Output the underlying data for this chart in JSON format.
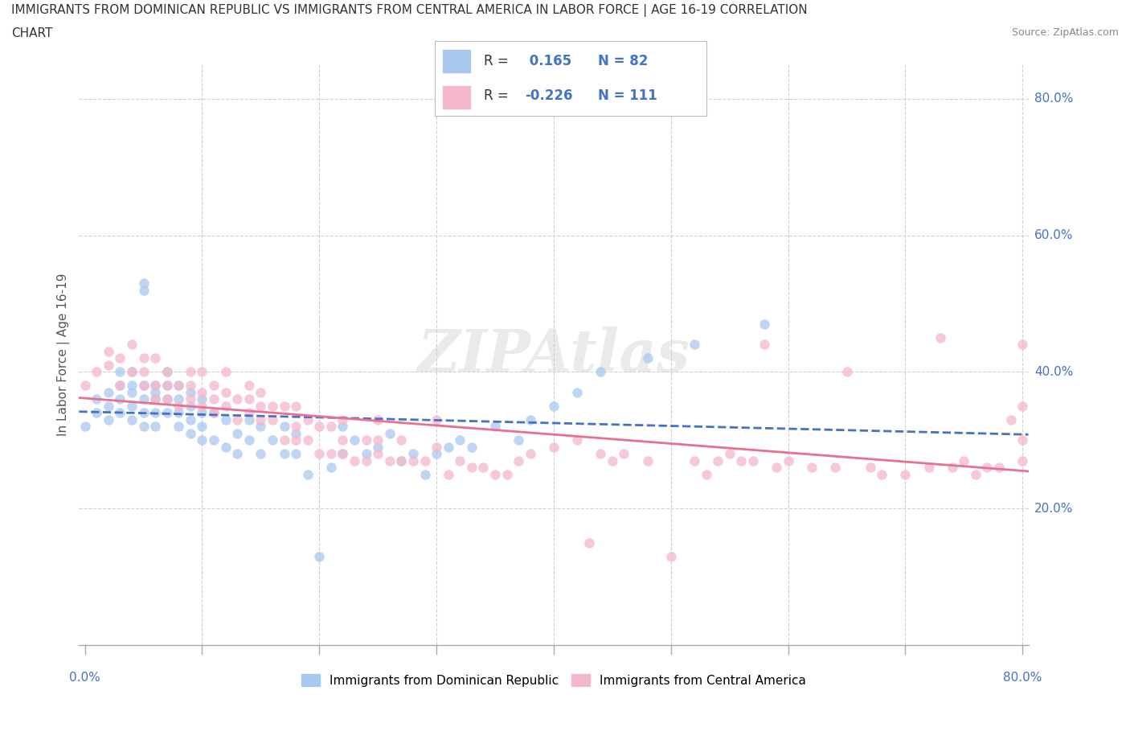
{
  "title_line1": "IMMIGRANTS FROM DOMINICAN REPUBLIC VS IMMIGRANTS FROM CENTRAL AMERICA IN LABOR FORCE | AGE 16-19 CORRELATION",
  "title_line2": "CHART",
  "source_text": "Source: ZipAtlas.com",
  "ylabel": "In Labor Force | Age 16-19",
  "watermark": "ZIPAtlas",
  "series": [
    {
      "name": "Immigrants from Dominican Republic",
      "color": "#a8c8f0",
      "line_color": "#4472c4",
      "line_style": "--",
      "R": 0.165,
      "N": 82,
      "x": [
        0.0,
        0.01,
        0.01,
        0.02,
        0.02,
        0.02,
        0.03,
        0.03,
        0.03,
        0.03,
        0.04,
        0.04,
        0.04,
        0.04,
        0.04,
        0.05,
        0.05,
        0.05,
        0.05,
        0.05,
        0.05,
        0.06,
        0.06,
        0.06,
        0.06,
        0.06,
        0.07,
        0.07,
        0.07,
        0.07,
        0.08,
        0.08,
        0.08,
        0.08,
        0.09,
        0.09,
        0.09,
        0.09,
        0.1,
        0.1,
        0.1,
        0.1,
        0.11,
        0.11,
        0.12,
        0.12,
        0.13,
        0.13,
        0.14,
        0.14,
        0.15,
        0.15,
        0.16,
        0.17,
        0.17,
        0.18,
        0.18,
        0.19,
        0.2,
        0.21,
        0.22,
        0.22,
        0.23,
        0.24,
        0.25,
        0.26,
        0.27,
        0.28,
        0.29,
        0.3,
        0.31,
        0.32,
        0.33,
        0.35,
        0.37,
        0.38,
        0.4,
        0.42,
        0.44,
        0.48,
        0.52,
        0.58
      ],
      "y": [
        0.32,
        0.34,
        0.36,
        0.33,
        0.35,
        0.37,
        0.34,
        0.36,
        0.38,
        0.4,
        0.33,
        0.35,
        0.37,
        0.38,
        0.4,
        0.32,
        0.34,
        0.36,
        0.38,
        0.52,
        0.53,
        0.32,
        0.34,
        0.36,
        0.37,
        0.38,
        0.34,
        0.36,
        0.38,
        0.4,
        0.32,
        0.34,
        0.36,
        0.38,
        0.31,
        0.33,
        0.35,
        0.37,
        0.3,
        0.32,
        0.34,
        0.36,
        0.3,
        0.34,
        0.29,
        0.33,
        0.28,
        0.31,
        0.3,
        0.33,
        0.28,
        0.32,
        0.3,
        0.28,
        0.32,
        0.28,
        0.31,
        0.25,
        0.13,
        0.26,
        0.28,
        0.32,
        0.3,
        0.28,
        0.29,
        0.31,
        0.27,
        0.28,
        0.25,
        0.28,
        0.29,
        0.3,
        0.29,
        0.32,
        0.3,
        0.33,
        0.35,
        0.37,
        0.4,
        0.42,
        0.44,
        0.47
      ]
    },
    {
      "name": "Immigrants from Central America",
      "color": "#f5b8cb",
      "line_color": "#e8718d",
      "line_style": "-",
      "R": -0.226,
      "N": 111,
      "x": [
        0.0,
        0.01,
        0.02,
        0.02,
        0.03,
        0.03,
        0.04,
        0.04,
        0.05,
        0.05,
        0.05,
        0.06,
        0.06,
        0.06,
        0.07,
        0.07,
        0.07,
        0.08,
        0.08,
        0.09,
        0.09,
        0.09,
        0.1,
        0.1,
        0.1,
        0.11,
        0.11,
        0.11,
        0.12,
        0.12,
        0.12,
        0.13,
        0.13,
        0.14,
        0.14,
        0.14,
        0.15,
        0.15,
        0.15,
        0.16,
        0.16,
        0.17,
        0.17,
        0.18,
        0.18,
        0.18,
        0.19,
        0.19,
        0.2,
        0.2,
        0.21,
        0.21,
        0.22,
        0.22,
        0.22,
        0.23,
        0.24,
        0.24,
        0.25,
        0.25,
        0.25,
        0.26,
        0.27,
        0.27,
        0.28,
        0.29,
        0.3,
        0.3,
        0.31,
        0.32,
        0.33,
        0.34,
        0.35,
        0.36,
        0.37,
        0.38,
        0.4,
        0.42,
        0.43,
        0.44,
        0.45,
        0.46,
        0.48,
        0.5,
        0.52,
        0.53,
        0.54,
        0.55,
        0.56,
        0.57,
        0.58,
        0.59,
        0.6,
        0.62,
        0.64,
        0.65,
        0.67,
        0.68,
        0.7,
        0.72,
        0.73,
        0.74,
        0.75,
        0.76,
        0.77,
        0.78,
        0.79,
        0.8,
        0.8,
        0.8,
        0.8
      ],
      "y": [
        0.38,
        0.4,
        0.41,
        0.43,
        0.38,
        0.42,
        0.4,
        0.44,
        0.38,
        0.4,
        0.42,
        0.36,
        0.38,
        0.42,
        0.36,
        0.38,
        0.4,
        0.35,
        0.38,
        0.36,
        0.38,
        0.4,
        0.35,
        0.37,
        0.4,
        0.34,
        0.36,
        0.38,
        0.35,
        0.37,
        0.4,
        0.33,
        0.36,
        0.34,
        0.36,
        0.38,
        0.33,
        0.35,
        0.37,
        0.33,
        0.35,
        0.3,
        0.35,
        0.3,
        0.32,
        0.35,
        0.3,
        0.33,
        0.28,
        0.32,
        0.28,
        0.32,
        0.28,
        0.3,
        0.33,
        0.27,
        0.27,
        0.3,
        0.28,
        0.3,
        0.33,
        0.27,
        0.27,
        0.3,
        0.27,
        0.27,
        0.29,
        0.33,
        0.25,
        0.27,
        0.26,
        0.26,
        0.25,
        0.25,
        0.27,
        0.28,
        0.29,
        0.3,
        0.15,
        0.28,
        0.27,
        0.28,
        0.27,
        0.13,
        0.27,
        0.25,
        0.27,
        0.28,
        0.27,
        0.27,
        0.44,
        0.26,
        0.27,
        0.26,
        0.26,
        0.4,
        0.26,
        0.25,
        0.25,
        0.26,
        0.45,
        0.26,
        0.27,
        0.25,
        0.26,
        0.26,
        0.33,
        0.44,
        0.35,
        0.3,
        0.27
      ]
    }
  ],
  "xlim": [
    -0.005,
    0.805
  ],
  "ylim": [
    0.0,
    0.85
  ],
  "xticks": [
    0.0,
    0.1,
    0.2,
    0.3,
    0.4,
    0.5,
    0.6,
    0.7,
    0.8
  ],
  "yticks": [
    0.0,
    0.2,
    0.4,
    0.6,
    0.8
  ],
  "x_label_ticks": [
    0.0,
    0.8
  ],
  "x_label_values": [
    "0.0%",
    "80.0%"
  ],
  "y_label_values": [
    "20.0%",
    "40.0%",
    "60.0%",
    "80.0%"
  ],
  "grid_color": "#d0d0d0",
  "bg_color": "#ffffff",
  "title_color": "#333333",
  "marker_size": 9,
  "marker_alpha": 0.75
}
